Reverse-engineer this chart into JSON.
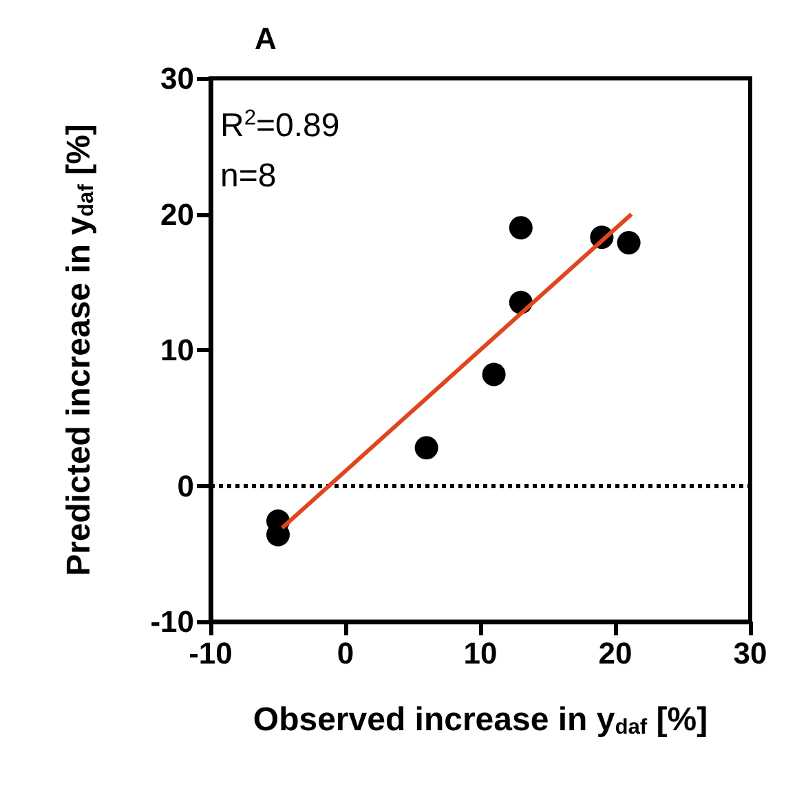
{
  "chart_data": {
    "type": "scatter",
    "title": "A",
    "xlabel": "Observed increase in y$_{daf}$ [%]",
    "ylabel": "Predicted increase in y$_{daf}$ [%]",
    "annotations": [
      "R$^{2}$=0.89",
      "n=8"
    ],
    "x": [
      -5,
      -5,
      6,
      11,
      13,
      13,
      19,
      21
    ],
    "series": [
      {
        "color": "#000000",
        "marker": "circle",
        "values": [
          -2.6,
          -3.6,
          2.8,
          8.2,
          13.5,
          19.0,
          18.3,
          17.9
        ]
      },
      {
        "type": "line",
        "color": "#e0461e",
        "marker": "none",
        "x": [
          -4.7,
          21.2
        ],
        "values": [
          -3.1,
          20.0
        ]
      }
    ],
    "xlim": [
      -10,
      30
    ],
    "xticks": [
      -10,
      0,
      10,
      20,
      30
    ],
    "ylim": [
      -10,
      30
    ],
    "yticks": [
      -10,
      0,
      10,
      20,
      30
    ],
    "ref_lines": [
      {
        "axis": "y",
        "value": 0,
        "color": "#000000",
        "line_style": "dotted"
      }
    ],
    "grid": false
  }
}
